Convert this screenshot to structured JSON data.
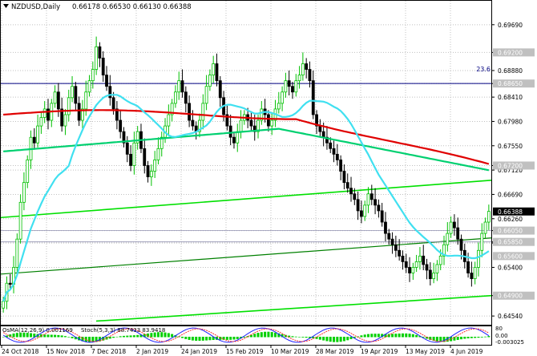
{
  "header": {
    "symbol": "NZDUSD,Daily",
    "ohlc": "0.66178 0.66530 0.66130 0.66388"
  },
  "osma_label": "OsMA(12,26,9) 0.001169",
  "stoch_label": "Stoch(5,3,3) 88.7433 83.9418",
  "fib_label": "23.6",
  "colors": {
    "bull": "#00c000",
    "bear": "#000000",
    "ma200": "#e00000",
    "ma144": "#00d070",
    "ma50": "#40e0f0",
    "channel": "#00e000",
    "hline": "#000080",
    "grid": "#c0c0c0",
    "price_label_bg": "#c0c0c0",
    "current_label_bg": "#000000",
    "osma_bars": "#00d000",
    "stoch_main": "#2020ff",
    "stoch_signal": "#ff3030"
  },
  "chart_data": {
    "type": "candlestick",
    "instrument": "NZDUSD",
    "timeframe": "Daily",
    "y_axis_ticks": [
      0.6969,
      0.692,
      0.6888,
      0.6865,
      0.6841,
      0.6798,
      0.6755,
      0.672,
      0.6712,
      0.6669,
      0.6626,
      0.6605,
      0.6585,
      0.6583,
      0.654,
      0.649,
      0.6454
    ],
    "y_axis_labels": [
      "0.69690",
      "0.69200",
      "0.68880",
      "0.68650",
      "0.68410",
      "0.67980",
      "0.67550",
      "0.67200",
      "0.67120",
      "0.66690",
      "0.66260",
      "0.66050",
      "0.65850",
      "0.65830",
      "0.65400",
      "0.64900",
      "0.64540"
    ],
    "highlighted_levels": [
      {
        "label": "0.69200",
        "value": 0.692
      },
      {
        "label": "0.68650",
        "value": 0.6865
      },
      {
        "label": "0.67200",
        "value": 0.672
      },
      {
        "label": "0.66050",
        "value": 0.6605
      },
      {
        "label": "0.65850",
        "value": 0.6585
      },
      {
        "label": "0.65600",
        "value": 0.656
      },
      {
        "label": "0.64900",
        "value": 0.649
      }
    ],
    "current_price": {
      "label": "0.66388",
      "value": 0.66388
    },
    "x_axis_labels": [
      "24 Oct 2018",
      "15 Nov 2018",
      "7 Dec 2018",
      "2 Jan 2019",
      "24 Jan 2019",
      "15 Feb 2019",
      "10 Mar 2019",
      "28 Mar 2019",
      "19 Apr 2019",
      "13 May 2019",
      "4 Jun 2019"
    ],
    "ylim": [
      0.644,
      0.699
    ],
    "close": [
      0.648,
      0.6512,
      0.651,
      0.654,
      0.659,
      0.6655,
      0.669,
      0.673,
      0.677,
      0.676,
      0.679,
      0.6805,
      0.682,
      0.68,
      0.683,
      0.685,
      0.682,
      0.679,
      0.681,
      0.684,
      0.686,
      0.683,
      0.68,
      0.682,
      0.685,
      0.687,
      0.689,
      0.693,
      0.691,
      0.688,
      0.686,
      0.684,
      0.682,
      0.68,
      0.678,
      0.676,
      0.674,
      0.672,
      0.676,
      0.678,
      0.675,
      0.672,
      0.67,
      0.671,
      0.673,
      0.675,
      0.677,
      0.679,
      0.681,
      0.683,
      0.685,
      0.687,
      0.685,
      0.683,
      0.68,
      0.679,
      0.678,
      0.68,
      0.683,
      0.686,
      0.688,
      0.69,
      0.687,
      0.684,
      0.681,
      0.679,
      0.677,
      0.676,
      0.678,
      0.68,
      0.681,
      0.68,
      0.679,
      0.678,
      0.68,
      0.682,
      0.681,
      0.679,
      0.68,
      0.682,
      0.683,
      0.685,
      0.687,
      0.686,
      0.685,
      0.687,
      0.688,
      0.69,
      0.689,
      0.687,
      0.681,
      0.679,
      0.678,
      0.677,
      0.676,
      0.675,
      0.674,
      0.673,
      0.671,
      0.669,
      0.668,
      0.667,
      0.666,
      0.664,
      0.663,
      0.665,
      0.667,
      0.666,
      0.665,
      0.664,
      0.662,
      0.66,
      0.659,
      0.658,
      0.657,
      0.656,
      0.655,
      0.654,
      0.653,
      0.654,
      0.655,
      0.656,
      0.6545,
      0.6535,
      0.652,
      0.653,
      0.6545,
      0.656,
      0.658,
      0.66,
      0.662,
      0.661,
      0.659,
      0.657,
      0.655,
      0.653,
      0.652,
      0.654,
      0.657,
      0.66,
      0.662,
      0.6639
    ]
  }
}
